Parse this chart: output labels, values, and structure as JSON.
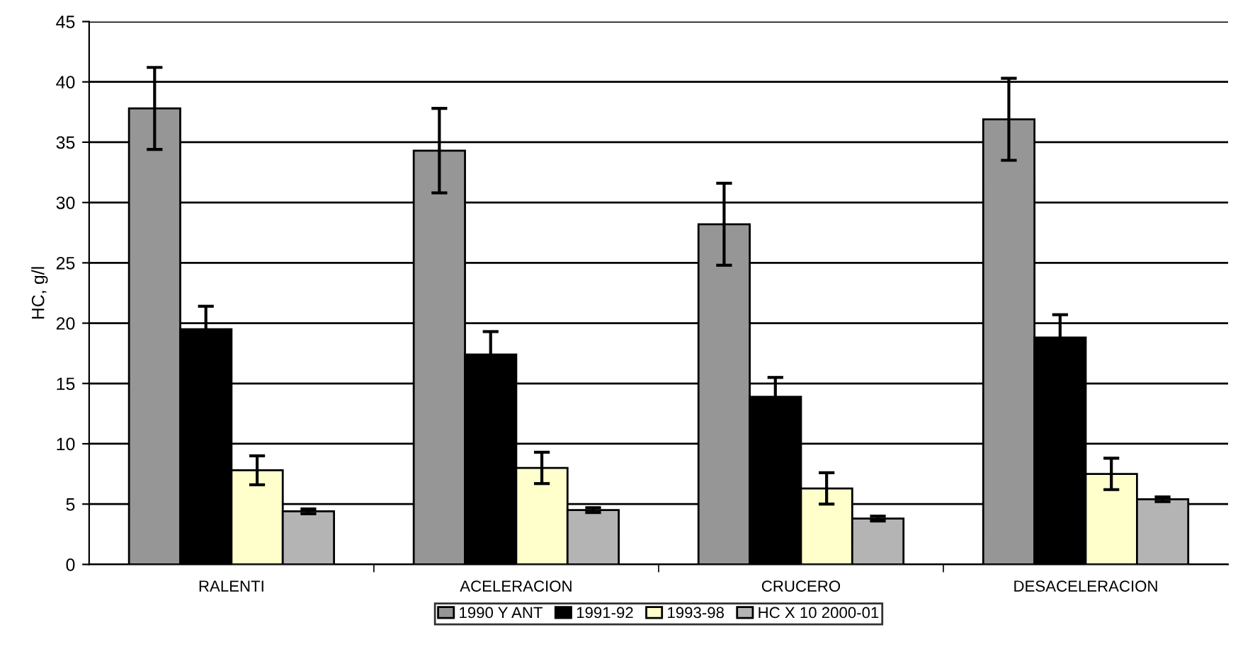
{
  "chart_data": {
    "type": "bar",
    "ylabel": "HC, g/l",
    "categories": [
      "RALENTI",
      "ACELERACION",
      "CRUCERO",
      "DESACELERACION"
    ],
    "series": [
      {
        "name": "1990 Y ANT",
        "color": "#969696",
        "values": [
          37.8,
          34.3,
          28.2,
          36.9
        ],
        "errors": [
          3.4,
          3.5,
          3.4,
          3.4
        ]
      },
      {
        "name": "1991-92",
        "color": "#000000",
        "values": [
          19.5,
          17.4,
          13.9,
          18.8
        ],
        "errors": [
          1.9,
          1.9,
          1.6,
          1.9
        ]
      },
      {
        "name": "1993-98",
        "color": "#ffffcc",
        "values": [
          7.8,
          8.0,
          6.3,
          7.5
        ],
        "errors": [
          1.2,
          1.3,
          1.3,
          1.3
        ]
      },
      {
        "name": "HC X 10 2000-01",
        "color": "#b4b4b4",
        "values": [
          4.4,
          4.5,
          3.8,
          5.4
        ],
        "errors": [
          0.2,
          0.2,
          0.2,
          0.2
        ]
      }
    ],
    "ylim": [
      0,
      45
    ],
    "yticks": [
      0,
      5,
      10,
      15,
      20,
      25,
      30,
      35,
      40,
      45
    ],
    "grid": "y",
    "legend": "bottom"
  }
}
